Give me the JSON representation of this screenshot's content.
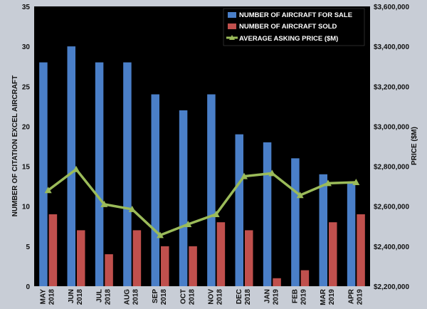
{
  "chart_data": {
    "type": "bar",
    "categories": [
      [
        "MAY",
        "2018"
      ],
      [
        "JUN",
        "2018"
      ],
      [
        "JUL",
        "2018"
      ],
      [
        "AUG",
        "2018"
      ],
      [
        "SEP",
        "2018"
      ],
      [
        "OCT",
        "2018"
      ],
      [
        "NOV",
        "2018"
      ],
      [
        "DEC",
        "2018"
      ],
      [
        "JAN",
        "2019"
      ],
      [
        "FEB",
        "2019"
      ],
      [
        "MAR",
        "2019"
      ],
      [
        "APR",
        "2019"
      ]
    ],
    "series": [
      {
        "name": "NUMBER OF AIRCRAFT FOR SALE",
        "type": "bar",
        "axis": "left",
        "color": "#4a7fc8",
        "values": [
          28,
          30,
          28,
          28,
          24,
          22,
          24,
          19,
          18,
          16,
          14,
          13
        ]
      },
      {
        "name": "NUMBER OF AIRCRAFT SOLD",
        "type": "bar",
        "axis": "left",
        "color": "#c0504d",
        "values": [
          9,
          7,
          4,
          7,
          5,
          5,
          8,
          7,
          1,
          2,
          8,
          9
        ]
      },
      {
        "name": "AVERAGE ASKING PRICE ($M)",
        "type": "line",
        "axis": "right",
        "color": "#9bbb59",
        "values": [
          2680000,
          2785000,
          2610000,
          2585000,
          2455000,
          2510000,
          2560000,
          2750000,
          2765000,
          2655000,
          2715000,
          2720000
        ]
      }
    ],
    "ylabel": "NUMBER OF CITATION EXCEL AIRCRAFT",
    "y2label": "PRICE ($M)",
    "ylim": [
      0,
      35
    ],
    "y2lim": [
      2200000,
      3600000
    ],
    "yticks": [
      0,
      5,
      10,
      15,
      20,
      25,
      30,
      35
    ],
    "y2ticks": [
      "$2,200,000",
      "$2,400,000",
      "$2,600,000",
      "$2,800,000",
      "$3,000,000",
      "$3,200,000",
      "$3,400,000",
      "$3,600,000"
    ],
    "legend_position": "top-right",
    "plot_background": "#000000",
    "grid": false
  }
}
